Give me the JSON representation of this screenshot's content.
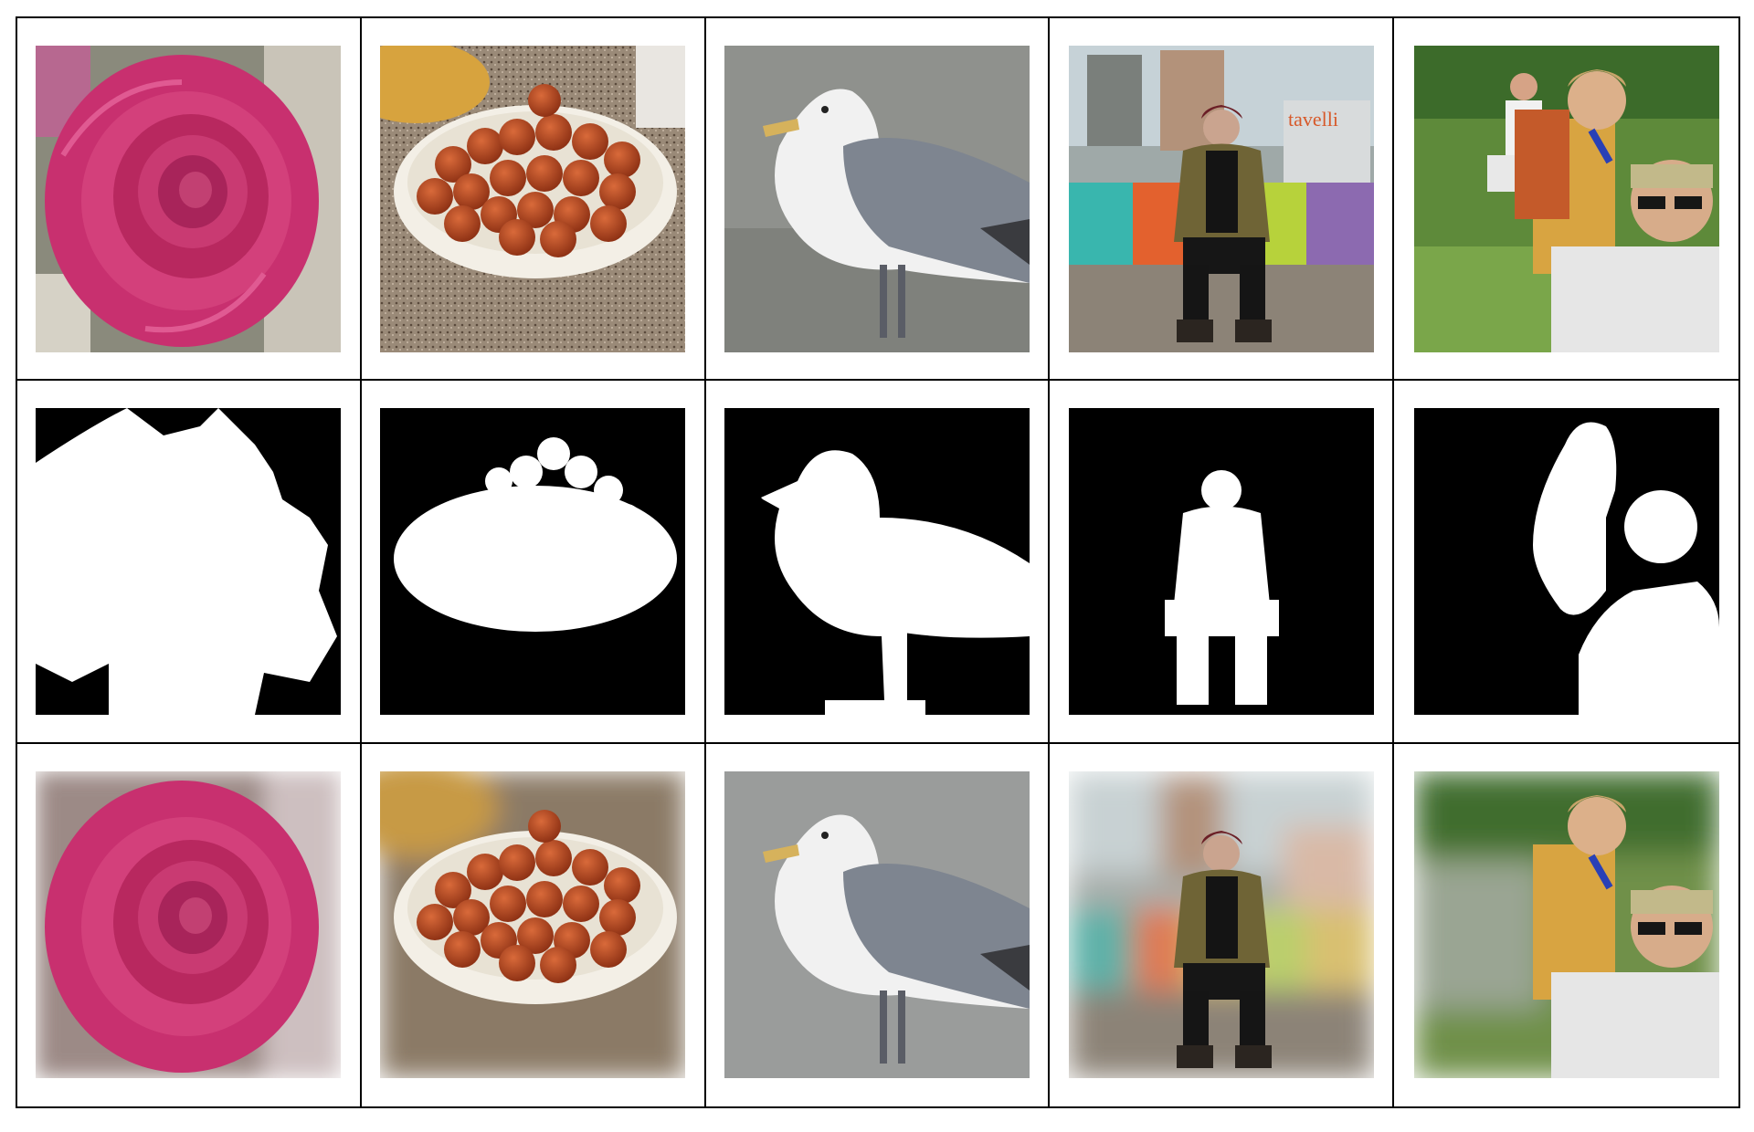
{
  "grid": {
    "rows": 3,
    "columns": 5,
    "row_kinds": [
      "original-photo",
      "segmentation-mask",
      "background-blurred-photo"
    ],
    "subjects": [
      "rose",
      "bowl-of-cherry-tomatoes",
      "seagull",
      "woman-on-bench",
      "hikers"
    ]
  },
  "sign_text": "tavelli",
  "colors": {
    "rose": "#c8306f",
    "tomato": "#a8421c",
    "gull_grey": "#7e8590",
    "jacket": "#6f6436",
    "grass": "#5e8a3a",
    "mask_bg": "#000000",
    "mask_fg": "#ffffff"
  }
}
